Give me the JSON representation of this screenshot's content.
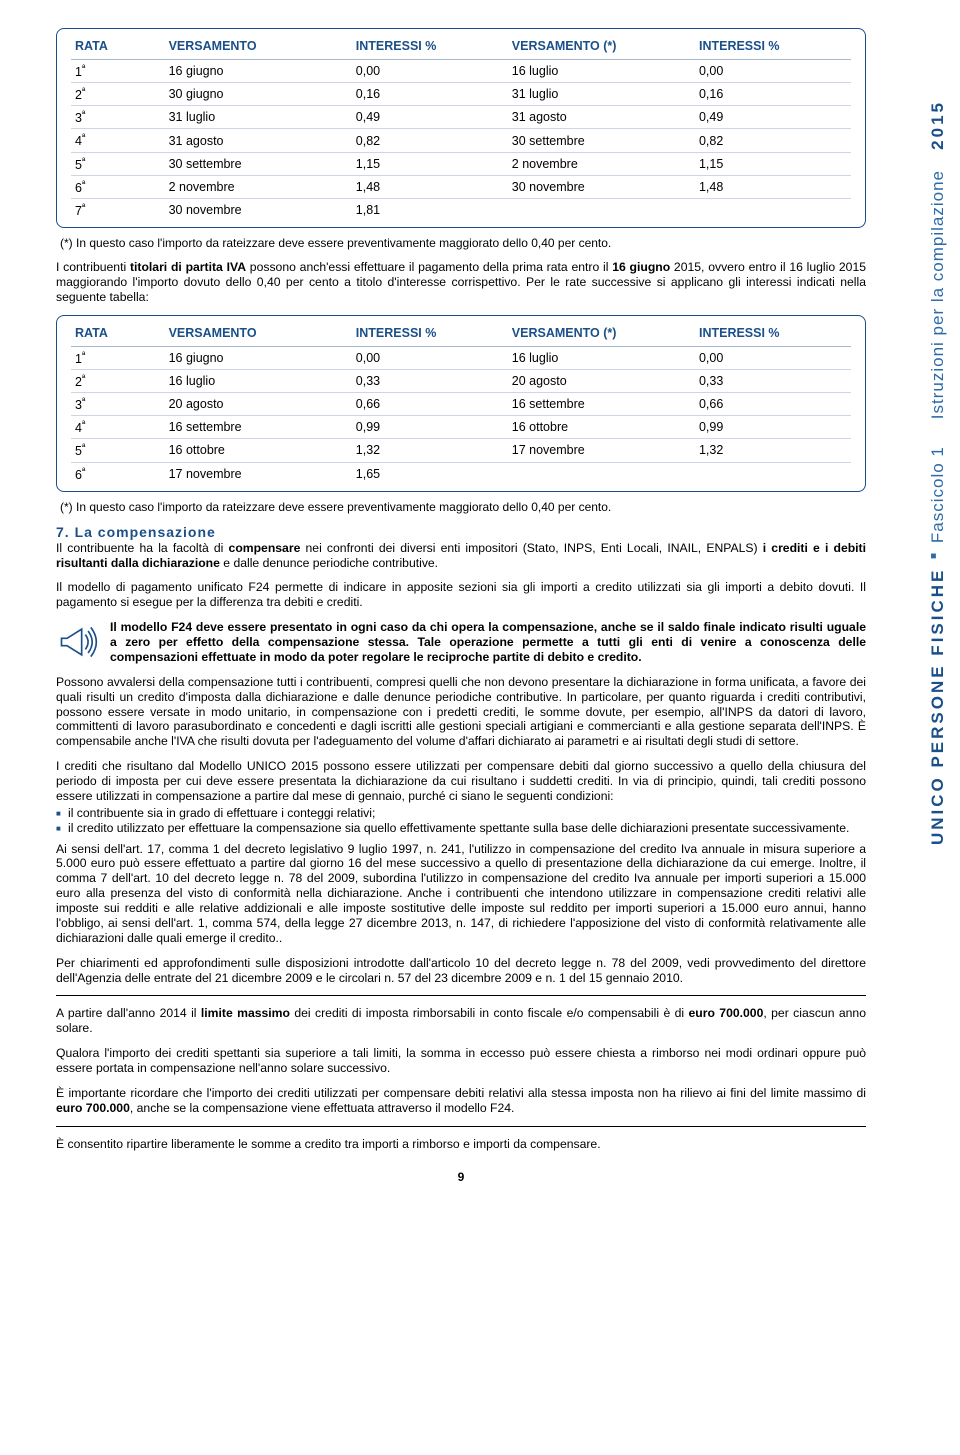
{
  "colors": {
    "brand": "#1a4f8a",
    "rule": "#cdd7e4",
    "headrule": "#a8b8cc",
    "text": "#000000",
    "bg": "#ffffff"
  },
  "sidebar": {
    "bold": "UNICO PERSONE FISICHE",
    "mid": "Fascicolo 1",
    "thin": "Istruzioni per la compilazione",
    "year": "2015"
  },
  "table1": {
    "headers": [
      "RATA",
      "VERSAMENTO",
      "INTERESSI %",
      "VERSAMENTO (*)",
      "INTERESSI %"
    ],
    "col_widths_pct": [
      12,
      24,
      20,
      24,
      20
    ],
    "rows": [
      [
        "1ª",
        "16 giugno",
        "0,00",
        "16 luglio",
        "0,00"
      ],
      [
        "2ª",
        "30 giugno",
        "0,16",
        "31 luglio",
        "0,16"
      ],
      [
        "3ª",
        "31 luglio",
        "0,49",
        "31 agosto",
        "0,49"
      ],
      [
        "4ª",
        "31 agosto",
        "0,82",
        "30 settembre",
        "0,82"
      ],
      [
        "5ª",
        "30 settembre",
        "1,15",
        "2 novembre",
        "1,15"
      ],
      [
        "6ª",
        "2 novembre",
        "1,48",
        "30 novembre",
        "1,48"
      ],
      [
        "7ª",
        "30 novembre",
        "1,81",
        "",
        ""
      ]
    ]
  },
  "footnote1": "(*) In questo caso l'importo da rateizzare deve essere preventivamente maggiorato dello 0,40 per cento.",
  "para_iva_pre": "I contribuenti ",
  "para_iva_bold": "titolari di partita IVA",
  "para_iva_post": " possono anch'essi effettuare il pagamento della prima rata entro il ",
  "para_iva_date": "16 giugno",
  "para_iva_post2": " 2015, ovvero entro il 16 luglio 2015 maggiorando l'importo dovuto dello 0,40 per cento a titolo d'interesse corrispettivo. Per le rate successive si applicano gli interessi indicati nella seguente tabella:",
  "table2": {
    "headers": [
      "RATA",
      "VERSAMENTO",
      "INTERESSI %",
      "VERSAMENTO (*)",
      "INTERESSI %"
    ],
    "col_widths_pct": [
      12,
      24,
      20,
      24,
      20
    ],
    "rows": [
      [
        "1ª",
        "16 giugno",
        "0,00",
        "16 luglio",
        "0,00"
      ],
      [
        "2ª",
        "16 luglio",
        "0,33",
        "20 agosto",
        "0,33"
      ],
      [
        "3ª",
        "20 agosto",
        "0,66",
        "16 settembre",
        "0,66"
      ],
      [
        "4ª",
        "16 settembre",
        "0,99",
        "16 ottobre",
        "0,99"
      ],
      [
        "5ª",
        "16 ottobre",
        "1,32",
        "17 novembre",
        "1,32"
      ],
      [
        "6ª",
        "17 novembre",
        "1,65",
        "",
        ""
      ]
    ]
  },
  "footnote2": "(*) In questo caso l'importo da rateizzare deve essere preventivamente maggiorato dello 0,40 per cento.",
  "section7_title": "7. La compensazione",
  "section7_p1_a": "Il contribuente ha la facoltà di ",
  "section7_p1_b": "compensare",
  "section7_p1_c": " nei confronti dei diversi enti impositori (Stato, INPS, Enti Locali, INAIL, ENPALS) ",
  "section7_p1_d": "i crediti e i debiti risultanti dalla dichiarazione",
  "section7_p1_e": " e dalle denunce periodiche contributive.",
  "section7_p2": "Il modello di pagamento unificato F24 permette di indicare in apposite sezioni sia gli importi a credito utilizzati sia gli importi a debito dovuti. Il pagamento si esegue per la differenza tra debiti e crediti.",
  "callout": "Il modello F24 deve essere presentato in ogni caso da chi opera la compensazione, anche se il saldo finale indicato risulti uguale a zero per effetto della compensazione stessa. Tale operazione permette a tutti gli enti di venire a conoscenza delle compensazioni effettuate in modo da poter regolare le reciproche partite di debito e credito.",
  "section7_p3": "Possono avvalersi della compensazione tutti i contribuenti, compresi quelli che non devono presentare la dichiarazione in forma unificata, a favore dei quali risulti un credito d'imposta dalla dichiarazione e dalle denunce periodiche contributive. In particolare, per quanto riguarda i crediti contributivi, possono essere versate in modo unitario, in compensazione con i predetti crediti, le somme dovute, per esempio, all'INPS da datori di lavoro, committenti di lavoro parasubordinato e concedenti e dagli iscritti alle gestioni speciali artigiani e commercianti e alla gestione separata dell'INPS. È compensabile anche l'IVA che risulti dovuta per l'adeguamento del volume d'affari dichiarato ai parametri e ai risultati degli studi di settore.",
  "section7_p4": "I crediti che risultano dal Modello UNICO 2015 possono essere utilizzati per compensare debiti dal giorno successivo a quello della chiusura del periodo di imposta per cui deve essere presentata la dichiarazione da cui risultano i suddetti crediti. In via di principio, quindi, tali crediti possono essere utilizzati in compensazione a partire dal mese di gennaio, purché ci siano le seguenti condizioni:",
  "bullets": [
    "il contribuente sia in grado di effettuare i conteggi relativi;",
    "il credito utilizzato per effettuare la compensazione sia quello effettivamente spettante sulla base delle dichiarazioni presentate successivamente."
  ],
  "section7_p5": "Ai sensi dell'art. 17, comma 1 del decreto legislativo 9 luglio 1997, n. 241, l'utilizzo in compensazione del credito Iva annuale in misura superiore a 5.000 euro può essere effettuato a partire dal giorno 16 del mese successivo a quello di presentazione della dichiarazione da cui emerge. Inoltre, il comma 7 dell'art. 10 del decreto legge n. 78 del 2009, subordina l'utilizzo in compensazione del credito Iva annuale per importi superiori a 15.000 euro alla presenza del visto di conformità nella dichiarazione. Anche i contribuenti che intendono utilizzare in compensazione crediti relativi alle imposte sui redditi e alle relative addizionali e alle imposte sostitutive delle imposte sul reddito per importi superiori a 15.000 euro annui, hanno l'obbligo, ai sensi dell'art. 1, comma 574, della legge 27 dicembre 2013, n. 147, di richiedere l'apposizione del visto di conformità relativamente alle dichiarazioni dalle quali emerge il credito..",
  "section7_p6": "Per chiarimenti ed approfondimenti sulle disposizioni introdotte dall'articolo 10 del decreto legge n. 78 del 2009, vedi provvedimento del direttore dell'Agenzia delle entrate del 21 dicembre 2009 e le circolari n. 57 del 23 dicembre 2009 e n. 1 del 15 gennaio 2010.",
  "section7_p7_a": "A partire dall'anno 2014 il ",
  "section7_p7_b": "limite massimo",
  "section7_p7_c": " dei crediti di imposta rimborsabili in conto fiscale e/o compensabili è di ",
  "section7_p7_d": "euro 700.000",
  "section7_p7_e": ", per ciascun anno solare.",
  "section7_p8": "Qualora l'importo dei crediti spettanti sia superiore a tali limiti, la somma in eccesso può essere chiesta a rimborso nei modi ordinari oppure può essere portata in compensazione nell'anno solare successivo.",
  "section7_p9_a": "È importante ricordare che l'importo dei crediti utilizzati per compensare debiti relativi alla stessa imposta non ha rilievo ai fini del limite massimo di ",
  "section7_p9_b": "euro 700.000",
  "section7_p9_c": ", anche se la compensazione viene effettuata attraverso il modello F24.",
  "section7_p10": "È consentito ripartire liberamente le somme a credito tra importi a rimborso e importi da compensare.",
  "pagenum": "9"
}
